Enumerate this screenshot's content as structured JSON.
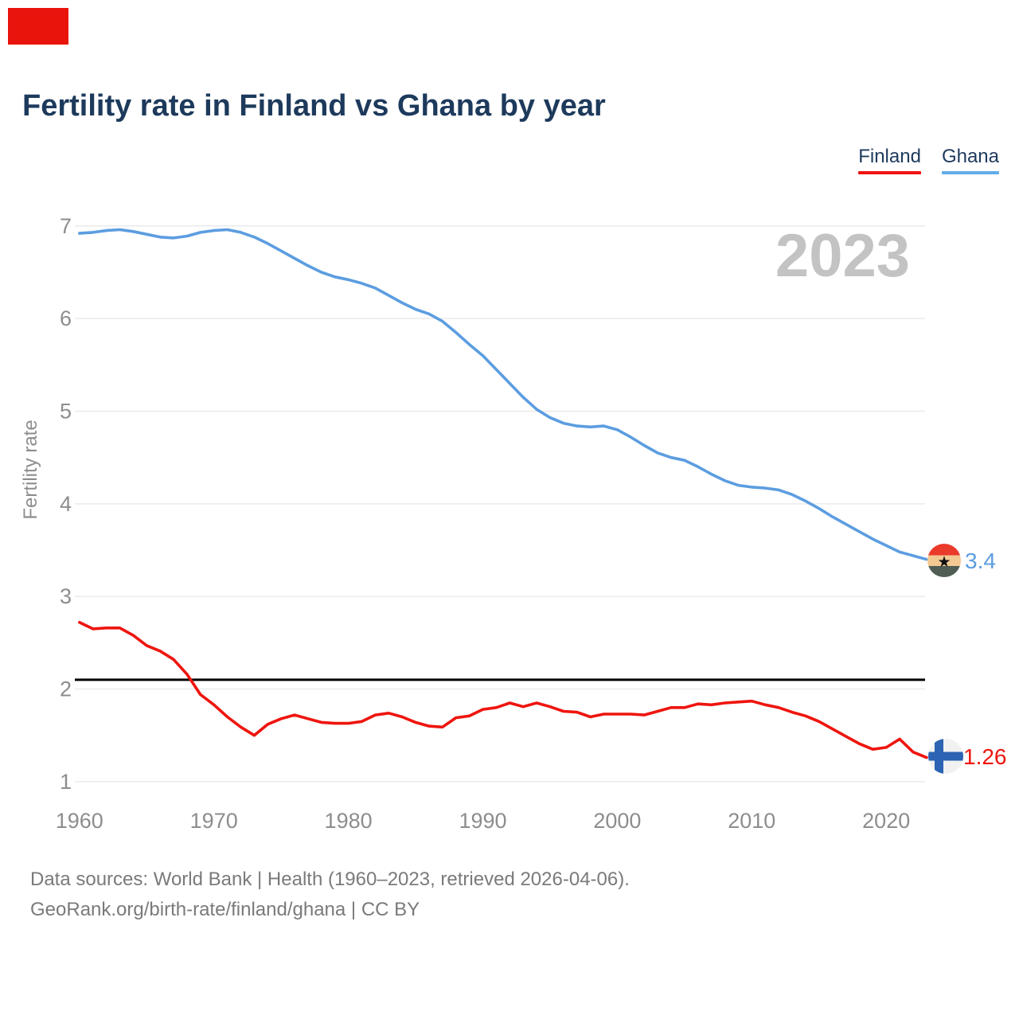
{
  "page": {
    "title": "Fertility rate in Finland vs Ghana by year",
    "watermark": "2023",
    "footer_line1": "Data sources: World Bank | Health (1960–2023, retrieved 2026-04-06).",
    "footer_line2": "GeoRank.org/birth-rate/finland/ghana | CC BY"
  },
  "legend": {
    "items": [
      {
        "label": "Finland",
        "color": "#ee150e"
      },
      {
        "label": "Ghana",
        "color": "#63ade8"
      }
    ]
  },
  "colors": {
    "title_text": "#1d3a5c",
    "finland_line": "#ee150e",
    "ghana_line": "#5c9de0",
    "gridline": "#ebebeb",
    "axis_text": "#8d8d8d",
    "watermark": "#c3c3c3",
    "reference_line": "#000000",
    "overlay_marker": "#e9140c"
  },
  "chart_data": {
    "type": "line",
    "title": "Fertility rate in Finland vs Ghana by year",
    "xlabel": "",
    "ylabel": "Fertility rate",
    "ylim": [
      1,
      7
    ],
    "grid": "horizontal",
    "legend_position": "top-right",
    "watermark": "2023",
    "yticks": [
      1,
      2,
      3,
      4,
      5,
      6,
      7
    ],
    "xticks": [
      1960,
      1970,
      1980,
      1990,
      2000,
      2010,
      2020
    ],
    "years": [
      1960,
      1961,
      1962,
      1963,
      1964,
      1965,
      1966,
      1967,
      1968,
      1969,
      1970,
      1971,
      1972,
      1973,
      1974,
      1975,
      1976,
      1977,
      1978,
      1979,
      1980,
      1981,
      1982,
      1983,
      1984,
      1985,
      1986,
      1987,
      1988,
      1989,
      1990,
      1991,
      1992,
      1993,
      1994,
      1995,
      1996,
      1997,
      1998,
      1999,
      2000,
      2001,
      2002,
      2003,
      2004,
      2005,
      2006,
      2007,
      2008,
      2009,
      2010,
      2011,
      2012,
      2013,
      2014,
      2015,
      2016,
      2017,
      2018,
      2019,
      2020,
      2021,
      2022,
      2023
    ],
    "series": [
      {
        "name": "Ghana",
        "color": "#5c9de0",
        "values": [
          6.92,
          6.93,
          6.95,
          6.96,
          6.94,
          6.91,
          6.88,
          6.87,
          6.89,
          6.93,
          6.95,
          6.96,
          6.93,
          6.88,
          6.81,
          6.73,
          6.65,
          6.57,
          6.5,
          6.45,
          6.42,
          6.38,
          6.33,
          6.25,
          6.17,
          6.1,
          6.05,
          5.97,
          5.85,
          5.72,
          5.6,
          5.45,
          5.3,
          5.15,
          5.02,
          4.93,
          4.87,
          4.84,
          4.83,
          4.84,
          4.8,
          4.72,
          4.63,
          4.55,
          4.5,
          4.47,
          4.4,
          4.32,
          4.25,
          4.2,
          4.18,
          4.17,
          4.15,
          4.1,
          4.03,
          3.95,
          3.86,
          3.78,
          3.7,
          3.62,
          3.55,
          3.48,
          3.44,
          3.4
        ]
      },
      {
        "name": "Finland",
        "color": "#ee150e",
        "values": [
          2.72,
          2.65,
          2.66,
          2.66,
          2.58,
          2.47,
          2.41,
          2.32,
          2.16,
          1.94,
          1.83,
          1.7,
          1.59,
          1.5,
          1.62,
          1.68,
          1.72,
          1.68,
          1.64,
          1.63,
          1.63,
          1.65,
          1.72,
          1.74,
          1.7,
          1.64,
          1.6,
          1.59,
          1.69,
          1.71,
          1.78,
          1.8,
          1.85,
          1.81,
          1.85,
          1.81,
          1.76,
          1.75,
          1.7,
          1.73,
          1.73,
          1.73,
          1.72,
          1.76,
          1.8,
          1.8,
          1.84,
          1.83,
          1.85,
          1.86,
          1.87,
          1.83,
          1.8,
          1.75,
          1.71,
          1.65,
          1.57,
          1.49,
          1.41,
          1.35,
          1.37,
          1.46,
          1.32,
          1.26
        ]
      }
    ],
    "reference_line": {
      "value": 2.1,
      "color": "#000000"
    },
    "end_labels": [
      {
        "series": "Ghana",
        "text": "3.4",
        "color": "#5c9de0",
        "flag": "ghana-flag-icon"
      },
      {
        "series": "Finland",
        "text": "1.26",
        "color": "#ee150e",
        "flag": "finland-flag-icon"
      }
    ]
  }
}
